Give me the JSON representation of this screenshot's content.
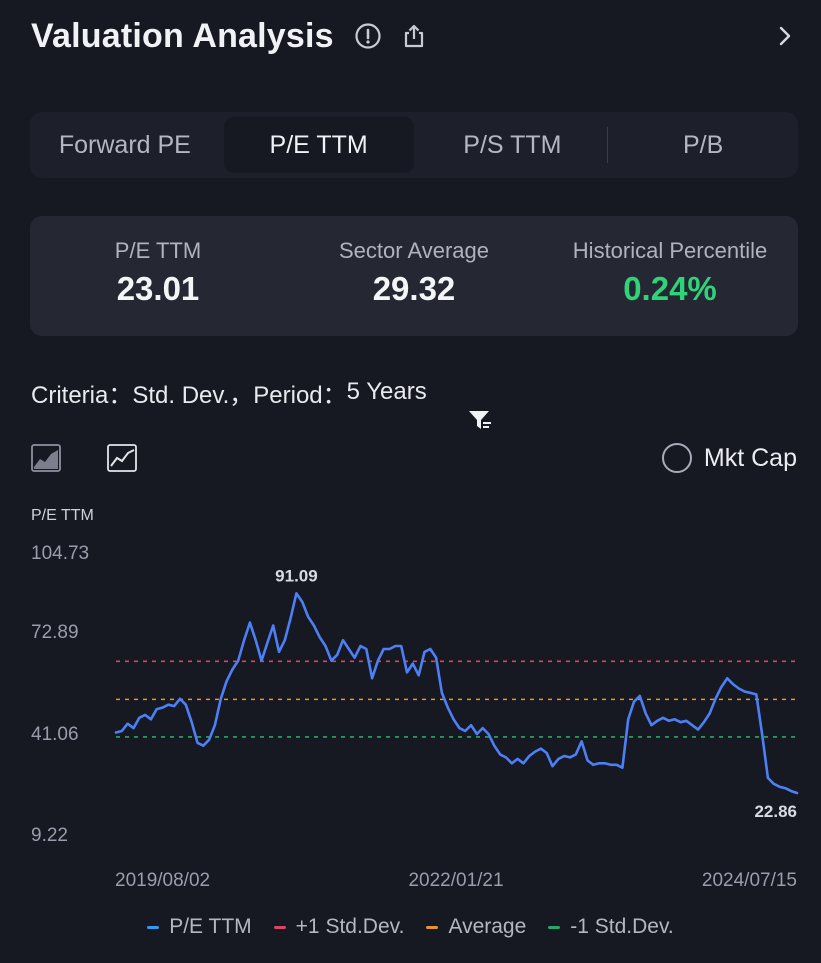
{
  "header": {
    "title": "Valuation Analysis",
    "info_icon": "info-icon",
    "share_icon": "share-icon",
    "chevron_icon": "chevron-right-icon"
  },
  "tabs": [
    {
      "label": "Forward PE",
      "active": false
    },
    {
      "label": "P/E TTM",
      "active": true
    },
    {
      "label": "P/S TTM",
      "active": false
    },
    {
      "label": "P/B",
      "active": false
    }
  ],
  "stats": [
    {
      "label": "P/E TTM",
      "value": "23.01",
      "color": "#f4f5f7"
    },
    {
      "label": "Sector Average",
      "value": "29.32",
      "color": "#f4f5f7"
    },
    {
      "label": "Historical Percentile",
      "value": "0.24%",
      "color": "#2fd37a"
    }
  ],
  "criteria": {
    "criteria_label": "Criteria：",
    "criteria_value": "Std. Dev.，",
    "period_label": "Period：",
    "period_value": "5 Years",
    "filter_icon": "filter-icon"
  },
  "chart_controls": {
    "area_icon": "area-chart-icon",
    "line_icon": "line-chart-icon",
    "mktcap_label": "Mkt Cap"
  },
  "colors": {
    "series": "#4d7ff5",
    "plus_std": "#d9455f",
    "average": "#e0962a",
    "minus_std": "#27a86a",
    "background": "#161822"
  },
  "chart_data": {
    "type": "line",
    "ylabel": "P/E TTM",
    "yticks": [
      "104.73",
      "72.89",
      "41.06",
      "9.22"
    ],
    "ylim": [
      9.22,
      104.73
    ],
    "xticks": [
      "2019/08/02",
      "2022/01/21",
      "2024/07/15"
    ],
    "x_range": [
      "2019/08/02",
      "2024/07/15"
    ],
    "reference_lines": {
      "plus_std": 67.8,
      "average": 54.8,
      "minus_std": 42.0
    },
    "annotations": {
      "max": "91.09",
      "last": "22.86"
    },
    "legend": [
      "P/E TTM",
      "+1 Std.Dev.",
      "Average",
      "-1 Std.Dev."
    ],
    "legend_position": "bottom",
    "grid": false,
    "series": [
      {
        "name": "P/E TTM",
        "y": [
          43.5,
          44.0,
          46.5,
          45.0,
          48.5,
          49.5,
          48.0,
          51.5,
          52.0,
          53.0,
          52.5,
          55.0,
          53.0,
          47.0,
          40.0,
          39.0,
          41.0,
          46.0,
          55.0,
          61.0,
          65.0,
          68.0,
          75.0,
          81.0,
          75.0,
          68.0,
          74.0,
          80.0,
          71.0,
          75.0,
          82.5,
          91.0,
          88.0,
          83.0,
          80.0,
          76.0,
          73.0,
          68.0,
          70.0,
          75.0,
          72.0,
          69.0,
          73.0,
          72.0,
          62.0,
          68.0,
          72.0,
          72.0,
          73.0,
          73.0,
          64.0,
          67.0,
          63.0,
          71.0,
          72.0,
          69.0,
          57.0,
          52.0,
          48.0,
          45.0,
          44.0,
          46.0,
          43.0,
          45.0,
          43.0,
          39.0,
          36.0,
          35.0,
          33.0,
          34.5,
          33.0,
          35.5,
          37.0,
          38.0,
          36.5,
          32.0,
          34.5,
          35.5,
          35.0,
          36.0,
          40.5,
          34.0,
          32.5,
          33.0,
          33.0,
          32.5,
          32.5,
          31.5,
          48.0,
          54.0,
          56.0,
          50.0,
          46.0,
          47.5,
          48.5,
          47.5,
          48.0,
          47.0,
          47.5,
          46.0,
          44.5,
          47.0,
          50.0,
          55.0,
          59.0,
          62.0,
          60.0,
          58.5,
          57.5,
          57.0,
          56.5,
          43.0,
          28.0,
          26.0,
          25.0,
          24.5,
          23.5,
          22.86
        ]
      }
    ]
  }
}
